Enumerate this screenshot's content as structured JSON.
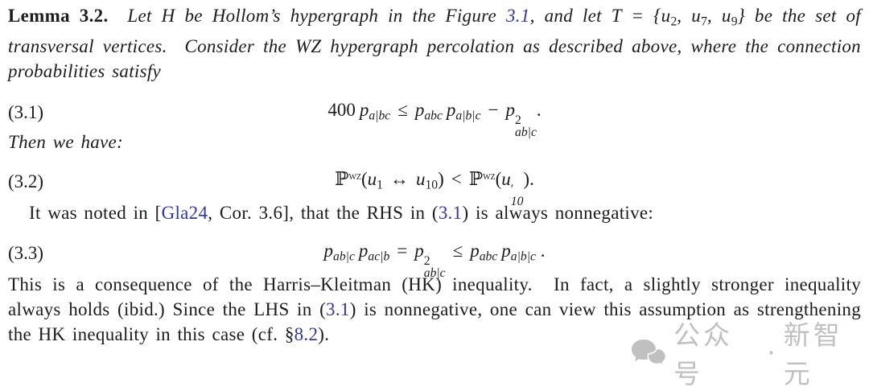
{
  "colors": {
    "text": "#1c1c1c",
    "link": "#2d35b5",
    "watermark": "#9b9b9b"
  },
  "paragraphs": {
    "lemma": [
      {
        "v": "Lemma 3.2.",
        "b": 1
      },
      {
        "v": "  Let H be Hollom’s hypergraph in the Figure ",
        "i": 1
      },
      {
        "v": "3.1",
        "i": 1,
        "link": 1
      },
      {
        "v": ", and let T = {u",
        "i": 1
      },
      {
        "v": "2",
        "sub": 1
      },
      {
        "v": ", u",
        "i": 1
      },
      {
        "v": "7",
        "sub": 1
      },
      {
        "v": ", u",
        "i": 1
      },
      {
        "v": "9",
        "sub": 1
      },
      {
        "v": "} be the set of transversal vertices.  Consider the WZ hypergraph percolation as described above, where the connection probabilities satisfy",
        "i": 1
      }
    ],
    "then": [
      {
        "v": "Then we have:",
        "i": 1
      }
    ],
    "noted": [
      {
        "v": "It was noted in ["
      },
      {
        "v": "Gla24",
        "link": 1
      },
      {
        "v": ", Cor. 3.6], that the RHS in ("
      },
      {
        "v": "3.1",
        "link": 1
      },
      {
        "v": ") is always nonnegative:"
      }
    ],
    "final": [
      {
        "v": "This is a consequence of the Harris–Kleitman (HK) inequality.  In fact, a slightly stronger inequality always holds (ibid.) Since the LHS in ("
      },
      {
        "v": "3.1",
        "link": 1
      },
      {
        "v": ") is nonnegative, one can view this assumption as strengthening the HK inequality in this case (cf. §"
      },
      {
        "v": "8.2",
        "link": 1
      },
      {
        "v": ")."
      }
    ]
  },
  "equations": {
    "eq31": {
      "label": "(3.1)",
      "tokens": [
        {
          "k": "rm",
          "v": "400"
        },
        {
          "k": "sp"
        },
        {
          "k": "it",
          "v": "p"
        },
        {
          "k": "sub",
          "v": "a|bc"
        },
        {
          "k": "rel",
          "v": "≤"
        },
        {
          "k": "it",
          "v": "p"
        },
        {
          "k": "sub",
          "v": "abc"
        },
        {
          "k": "sp"
        },
        {
          "k": "it",
          "v": "p"
        },
        {
          "k": "sub",
          "v": "a|b|c"
        },
        {
          "k": "rel",
          "v": "−"
        },
        {
          "k": "it",
          "v": "p"
        },
        {
          "k": "supsub",
          "sup": "2",
          "sub": "ab|c"
        },
        {
          "k": "rm",
          "v": "."
        }
      ]
    },
    "eq32": {
      "label": "(3.2)",
      "tokens": [
        {
          "k": "bb",
          "v": "ℙ"
        },
        {
          "k": "sup",
          "v": "wz"
        },
        {
          "k": "rm",
          "v": "("
        },
        {
          "k": "it",
          "v": "u"
        },
        {
          "k": "subrm",
          "v": "1"
        },
        {
          "k": "rel",
          "v": "↔"
        },
        {
          "k": "it",
          "v": "u"
        },
        {
          "k": "subrm",
          "v": "10"
        },
        {
          "k": "rm",
          "v": ")"
        },
        {
          "k": "rel",
          "v": "<"
        },
        {
          "k": "bb",
          "v": "ℙ"
        },
        {
          "k": "sup",
          "v": "wz"
        },
        {
          "k": "rm",
          "v": "("
        },
        {
          "k": "it",
          "v": "u"
        },
        {
          "k": "supsub",
          "sup": "′",
          "sub": "10"
        },
        {
          "k": "rm",
          "v": ")."
        }
      ]
    },
    "eq33": {
      "label": "(3.3)",
      "tokens": [
        {
          "k": "it",
          "v": "p"
        },
        {
          "k": "sub",
          "v": "ab|c"
        },
        {
          "k": "sp"
        },
        {
          "k": "it",
          "v": "p"
        },
        {
          "k": "sub",
          "v": "ac|b"
        },
        {
          "k": "rel",
          "v": "="
        },
        {
          "k": "it",
          "v": "p"
        },
        {
          "k": "supsub",
          "sup": "2",
          "sub": "ab|c"
        },
        {
          "k": "rel",
          "v": "≤"
        },
        {
          "k": "it",
          "v": "p"
        },
        {
          "k": "sub",
          "v": "abc"
        },
        {
          "k": "sp"
        },
        {
          "k": "it",
          "v": "p"
        },
        {
          "k": "sub",
          "v": "a|b|c"
        },
        {
          "k": "rm",
          "v": " ."
        }
      ]
    }
  },
  "watermark": {
    "icon": "wechat-bubbles-icon",
    "account_label": "公众号",
    "separator": "·",
    "name": "新智元"
  }
}
